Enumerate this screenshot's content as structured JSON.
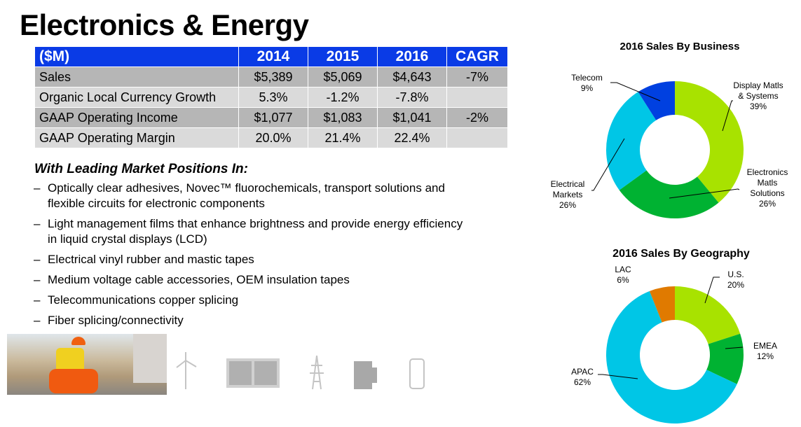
{
  "title": "Electronics & Energy",
  "table": {
    "headers": [
      "($M)",
      "2014",
      "2015",
      "2016",
      "CAGR"
    ],
    "rows": [
      [
        "Sales",
        "$5,389",
        "$5,069",
        "$4,643",
        "-7%"
      ],
      [
        "Organic Local Currency Growth",
        "5.3%",
        "-1.2%",
        "-7.8%",
        ""
      ],
      [
        "GAAP Operating Income",
        "$1,077",
        "$1,083",
        "$1,041",
        "-2%"
      ],
      [
        "GAAP Operating Margin",
        "20.0%",
        "21.4%",
        "22.4%",
        ""
      ]
    ]
  },
  "positions": {
    "heading": "With Leading Market Positions In:",
    "items": [
      "Optically clear adhesives, Novec™ fluorochemicals, transport solutions and flexible circuits for electronic components",
      "Light management films that enhance brightness and provide energy efficiency in liquid crystal displays (LCD)",
      "Electrical vinyl rubber and mastic tapes",
      "Medium voltage cable accessories, OEM insulation tapes",
      "Telecommunications copper splicing",
      "Fiber splicing/connectivity"
    ]
  },
  "icons": [
    "wind-turbine-icon",
    "window-film-icon",
    "power-tower-icon",
    "circuit-board-icon",
    "smartphone-icon"
  ],
  "chart_data": [
    {
      "type": "pie",
      "donut": true,
      "title": "2016 Sales By Business",
      "categories": [
        "Display Matls & Systems",
        "Electronics Matls Solutions",
        "Electrical Markets",
        "Telecom"
      ],
      "values": [
        39,
        26,
        26,
        9
      ],
      "labels": [
        "39%",
        "26%",
        "26%",
        "9%"
      ],
      "colors": [
        "#a8e200",
        "#00b232",
        "#00c6e6",
        "#0040e0"
      ]
    },
    {
      "type": "pie",
      "donut": true,
      "title": "2016 Sales By Geography",
      "categories": [
        "U.S.",
        "EMEA",
        "APAC",
        "LAC"
      ],
      "values": [
        20,
        12,
        62,
        6
      ],
      "labels": [
        "20%",
        "12%",
        "62%",
        "6%"
      ],
      "colors": [
        "#a8e200",
        "#00b232",
        "#00c6e6",
        "#e07a00"
      ]
    }
  ]
}
